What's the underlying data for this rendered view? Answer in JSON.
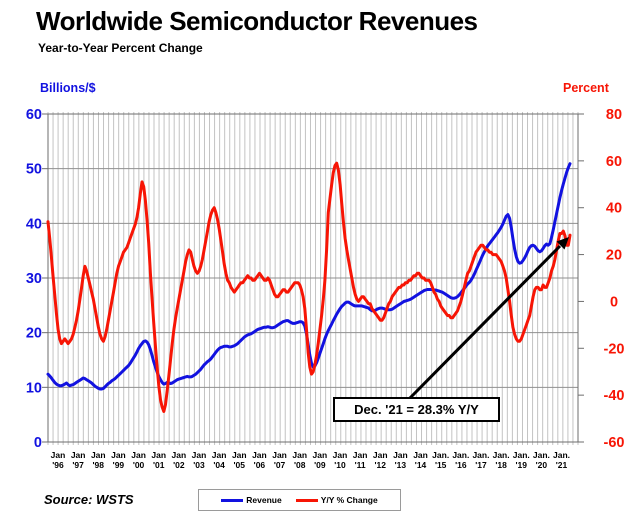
{
  "title": "Worldwide Semiconductor Revenues",
  "subtitle": "Year-to-Year Percent Change",
  "source": "Source: WSTS",
  "annotation": {
    "text": "Dec. '21 = 28.3% Y/Y"
  },
  "chart_data": {
    "type": "line",
    "title": "Worldwide Semiconductor Revenues",
    "subtitle": "Year-to-Year Percent Change",
    "x_start": "1996-01",
    "x_end": "2021-12",
    "x_step": "month",
    "grid": {
      "vertical": "quarterly",
      "horizontal": "left-axis every 10"
    },
    "legend_position": "bottom-center",
    "x_tick_labels": [
      {
        "top": "Jan",
        "bottom": "'96"
      },
      {
        "top": "Jan",
        "bottom": "'97"
      },
      {
        "top": "Jan",
        "bottom": "'98"
      },
      {
        "top": "Jan",
        "bottom": "'99"
      },
      {
        "top": "Jan",
        "bottom": "'00"
      },
      {
        "top": "Jan",
        "bottom": "'01"
      },
      {
        "top": "Jan",
        "bottom": "'02"
      },
      {
        "top": "Jan",
        "bottom": "'03"
      },
      {
        "top": "Jan",
        "bottom": "'04"
      },
      {
        "top": "Jan",
        "bottom": "'05"
      },
      {
        "top": "Jan",
        "bottom": "'06"
      },
      {
        "top": "Jan",
        "bottom": "'07"
      },
      {
        "top": "Jan",
        "bottom": "'08"
      },
      {
        "top": "Jan",
        "bottom": "'09"
      },
      {
        "top": "Jan",
        "bottom": "'10"
      },
      {
        "top": "Jan",
        "bottom": "'11"
      },
      {
        "top": "Jan",
        "bottom": "'12"
      },
      {
        "top": "Jan",
        "bottom": "'13"
      },
      {
        "top": "Jan",
        "bottom": "'14"
      },
      {
        "top": "Jan.",
        "bottom": "'15"
      },
      {
        "top": "Jan.",
        "bottom": "'16"
      },
      {
        "top": "Jan.",
        "bottom": "'17"
      },
      {
        "top": "Jan.",
        "bottom": "'18"
      },
      {
        "top": "Jan.",
        "bottom": "'19"
      },
      {
        "top": "Jan.",
        "bottom": "'20"
      },
      {
        "top": "Jan.",
        "bottom": "'21"
      }
    ],
    "left_axis": {
      "label": "Billions/$",
      "min": 0,
      "max": 60,
      "tick_step": 10,
      "color": "#1212e0"
    },
    "right_axis": {
      "label": "Percent",
      "min": -60,
      "max": 80,
      "tick_step": 20,
      "color": "#f71505"
    },
    "series": [
      {
        "name": "Revenue",
        "axis": "left",
        "unit": "US$ billions per month",
        "color": "#1212e0",
        "values": [
          12.4,
          12.1,
          11.7,
          11.3,
          10.9,
          10.6,
          10.4,
          10.3,
          10.3,
          10.4,
          10.6,
          10.8,
          10.5,
          10.3,
          10.4,
          10.5,
          10.7,
          10.9,
          11.1,
          11.3,
          11.5,
          11.7,
          11.6,
          11.4,
          11.2,
          11.0,
          10.8,
          10.5,
          10.2,
          10.0,
          9.8,
          9.7,
          9.7,
          9.8,
          10.1,
          10.4,
          10.7,
          10.9,
          11.2,
          11.4,
          11.6,
          11.9,
          12.2,
          12.5,
          12.8,
          13.1,
          13.4,
          13.7,
          14.0,
          14.4,
          14.9,
          15.4,
          15.9,
          16.5,
          17.1,
          17.6,
          18.0,
          18.4,
          18.5,
          18.3,
          17.8,
          16.9,
          15.8,
          14.7,
          13.7,
          12.8,
          12.0,
          11.4,
          10.9,
          10.6,
          10.7,
          10.9,
          10.8,
          10.7,
          10.8,
          11.0,
          11.2,
          11.4,
          11.5,
          11.6,
          11.7,
          11.8,
          11.9,
          12.0,
          11.9,
          11.9,
          12.0,
          12.2,
          12.4,
          12.7,
          13.0,
          13.3,
          13.7,
          14.1,
          14.4,
          14.7,
          14.9,
          15.2,
          15.6,
          16.0,
          16.4,
          16.8,
          17.1,
          17.3,
          17.4,
          17.5,
          17.5,
          17.5,
          17.4,
          17.4,
          17.5,
          17.6,
          17.8,
          18.0,
          18.3,
          18.6,
          18.9,
          19.2,
          19.4,
          19.6,
          19.7,
          19.8,
          20.0,
          20.2,
          20.4,
          20.6,
          20.7,
          20.8,
          20.9,
          21.0,
          21.0,
          21.1,
          21.0,
          20.9,
          20.9,
          21.0,
          21.2,
          21.4,
          21.6,
          21.8,
          22.0,
          22.1,
          22.2,
          22.2,
          22.0,
          21.8,
          21.7,
          21.7,
          21.8,
          21.9,
          22.0,
          22.0,
          21.8,
          21.2,
          19.8,
          17.8,
          15.9,
          14.4,
          13.7,
          13.9,
          14.5,
          15.3,
          16.2,
          17.1,
          18.0,
          18.9,
          19.7,
          20.4,
          21.0,
          21.6,
          22.2,
          22.8,
          23.4,
          23.9,
          24.4,
          24.8,
          25.1,
          25.4,
          25.6,
          25.6,
          25.4,
          25.2,
          25.0,
          24.9,
          24.9,
          24.9,
          24.9,
          24.9,
          24.8,
          24.7,
          24.6,
          24.5,
          24.2,
          24.0,
          24.0,
          24.1,
          24.3,
          24.4,
          24.5,
          24.5,
          24.4,
          24.3,
          24.2,
          24.2,
          24.2,
          24.3,
          24.5,
          24.7,
          24.9,
          25.1,
          25.3,
          25.5,
          25.7,
          25.8,
          25.9,
          26.0,
          26.1,
          26.3,
          26.5,
          26.7,
          26.9,
          27.1,
          27.3,
          27.5,
          27.7,
          27.8,
          27.9,
          27.9,
          27.9,
          27.9,
          27.8,
          27.8,
          27.7,
          27.6,
          27.5,
          27.4,
          27.2,
          27.0,
          26.8,
          26.6,
          26.4,
          26.3,
          26.3,
          26.4,
          26.6,
          26.9,
          27.3,
          27.7,
          28.1,
          28.5,
          28.9,
          29.2,
          29.6,
          30.1,
          30.7,
          31.4,
          32.1,
          32.8,
          33.5,
          34.2,
          34.8,
          35.4,
          35.9,
          36.3,
          36.7,
          37.1,
          37.5,
          37.9,
          38.3,
          38.8,
          39.3,
          39.9,
          40.6,
          41.3,
          41.6,
          40.9,
          39.2,
          37.2,
          35.3,
          33.9,
          33.0,
          32.7,
          32.8,
          33.2,
          33.7,
          34.3,
          35.0,
          35.6,
          35.9,
          36.0,
          35.8,
          35.4,
          35.0,
          34.8,
          35.0,
          35.4,
          35.9,
          36.2,
          36.0,
          36.3,
          37.4,
          38.8,
          40.3,
          41.8,
          43.3,
          44.7,
          46.0,
          47.2,
          48.3,
          49.3,
          50.2,
          50.9
        ]
      },
      {
        "name": "Y/Y % Change",
        "axis": "right",
        "unit": "percent",
        "color": "#f71505",
        "values": [
          34,
          27,
          19,
          11,
          3,
          -5,
          -12,
          -16,
          -18,
          -17,
          -16,
          -17,
          -18,
          -17,
          -16,
          -14,
          -11,
          -8,
          -4,
          1,
          6,
          11,
          15,
          13,
          10,
          7,
          4,
          1,
          -3,
          -7,
          -11,
          -14,
          -16,
          -17,
          -15,
          -12,
          -8,
          -4,
          0,
          4,
          8,
          12,
          15,
          17,
          19,
          21,
          22,
          23,
          25,
          27,
          29,
          31,
          33,
          36,
          40,
          46,
          51,
          49,
          43,
          35,
          25,
          12,
          1,
          -9,
          -19,
          -28,
          -36,
          -42,
          -45,
          -47,
          -44,
          -38,
          -32,
          -25,
          -18,
          -12,
          -7,
          -3,
          1,
          5,
          9,
          13,
          17,
          20,
          22,
          21,
          18,
          15,
          13,
          12,
          13,
          15,
          18,
          22,
          26,
          30,
          34,
          37,
          39,
          40,
          38,
          35,
          31,
          26,
          21,
          16,
          12,
          9,
          8,
          6,
          5,
          4,
          5,
          6,
          7,
          8,
          8,
          9,
          10,
          11,
          10,
          10,
          9,
          9,
          10,
          11,
          12,
          11,
          10,
          9,
          9,
          10,
          9,
          7,
          5,
          3,
          2,
          2,
          3,
          4,
          5,
          5,
          4,
          4,
          5,
          6,
          7,
          8,
          8,
          8,
          7,
          5,
          2,
          -3,
          -12,
          -22,
          -28,
          -31,
          -30,
          -27,
          -23,
          -18,
          -12,
          -6,
          1,
          9,
          22,
          38,
          44,
          50,
          55,
          58,
          59,
          56,
          50,
          42,
          34,
          27,
          22,
          18,
          14,
          10,
          6,
          3,
          1,
          0,
          1,
          2,
          2,
          1,
          0,
          -1,
          -1,
          -3,
          -4,
          -5,
          -6,
          -7,
          -8,
          -8,
          -7,
          -5,
          -3,
          -1,
          0,
          2,
          3,
          4,
          5,
          6,
          6,
          7,
          7,
          8,
          8,
          9,
          9,
          10,
          11,
          11,
          12,
          12,
          11,
          10,
          10,
          9,
          9,
          9,
          8,
          6,
          4,
          3,
          1,
          0,
          -2,
          -3,
          -4,
          -5,
          -6,
          -6,
          -7,
          -7,
          -6,
          -5,
          -4,
          -2,
          0,
          3,
          6,
          9,
          12,
          13,
          15,
          17,
          19,
          21,
          22,
          23,
          24,
          24,
          23,
          22,
          22,
          21,
          21,
          20,
          20,
          20,
          19,
          18,
          17,
          15,
          13,
          10,
          5,
          0,
          -6,
          -11,
          -14,
          -16,
          -17,
          -17,
          -16,
          -14,
          -12,
          -10,
          -8,
          -6,
          -2,
          2,
          5,
          6,
          6,
          5,
          5,
          7,
          6,
          6,
          8,
          10,
          13,
          15,
          18,
          22,
          26,
          29,
          29,
          30,
          28,
          24,
          24,
          28.3
        ]
      }
    ]
  }
}
